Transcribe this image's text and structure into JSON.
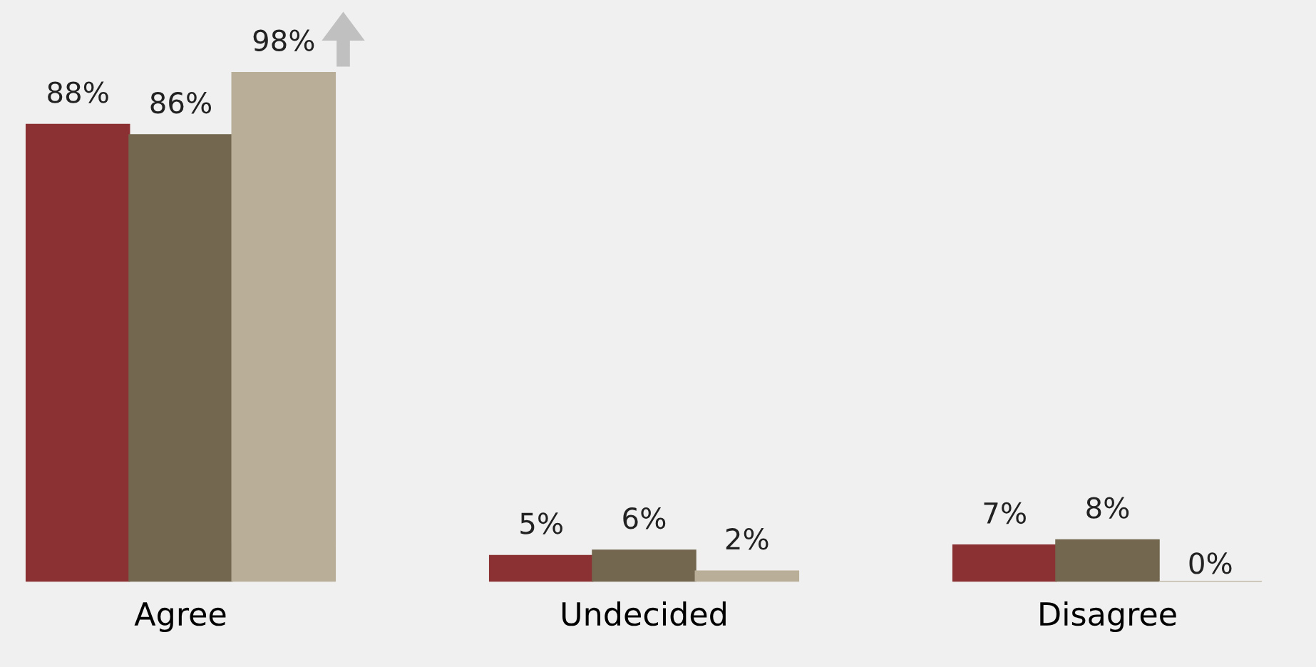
{
  "chart_data": {
    "type": "bar",
    "categories": [
      "Agree",
      "Undecided",
      "Disagree"
    ],
    "series": [
      {
        "color": "#8b3033",
        "values": [
          88,
          5,
          7
        ],
        "value_labels": [
          "88%",
          "5%",
          "7%"
        ]
      },
      {
        "color": "#74674f",
        "values": [
          86,
          6,
          8
        ],
        "value_labels": [
          "86%",
          "6%",
          "8%"
        ]
      },
      {
        "color": "#b9ae97",
        "values": [
          98,
          2,
          0
        ],
        "value_labels": [
          "98%",
          "2%",
          "0%"
        ]
      }
    ],
    "ylim": [
      0,
      112
    ],
    "grid": false,
    "legend": false
  }
}
